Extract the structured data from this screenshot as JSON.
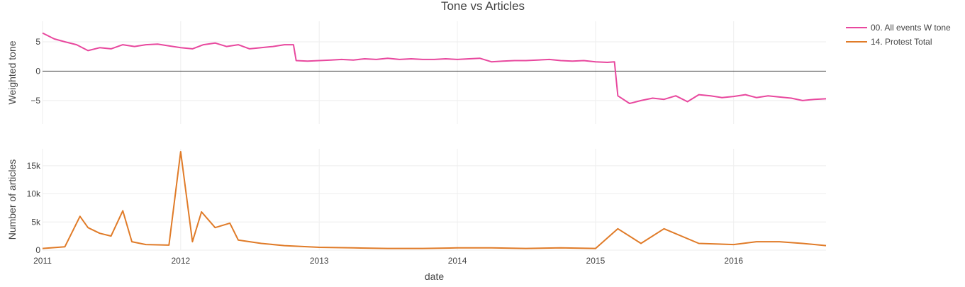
{
  "title": "Tone vs Articles",
  "legend": {
    "placement": "top-right",
    "items": [
      {
        "label": "00. All events W tone",
        "color": "#e8489e"
      },
      {
        "label": "14. Protest  Total",
        "color": "#e07b28"
      }
    ]
  },
  "chart_data": [
    {
      "type": "line",
      "title": "Tone vs Articles",
      "xlabel": "",
      "ylabel": "Weighted tone",
      "xlim": [
        "2011-01-01",
        "2016-09-01"
      ],
      "ylim": [
        -9,
        8.5
      ],
      "yticks": [
        5,
        0,
        -5
      ],
      "ytick_labels": [
        "5",
        "0",
        "−5"
      ],
      "zero_line": true,
      "grid": true,
      "series": [
        {
          "name": "00. All events W tone",
          "color": "#e8489e",
          "x": [
            "2011-01-01",
            "2011-02-01",
            "2011-03-01",
            "2011-04-01",
            "2011-05-01",
            "2011-06-01",
            "2011-07-01",
            "2011-08-01",
            "2011-09-01",
            "2011-10-01",
            "2011-11-01",
            "2011-12-01",
            "2012-01-01",
            "2012-02-01",
            "2012-03-01",
            "2012-04-01",
            "2012-05-01",
            "2012-06-01",
            "2012-07-01",
            "2012-08-01",
            "2012-09-01",
            "2012-10-01",
            "2012-10-25",
            "2012-11-01",
            "2012-12-01",
            "2013-01-01",
            "2013-02-01",
            "2013-03-01",
            "2013-04-01",
            "2013-05-01",
            "2013-06-01",
            "2013-07-01",
            "2013-08-01",
            "2013-09-01",
            "2013-10-01",
            "2013-11-01",
            "2013-12-01",
            "2014-01-01",
            "2014-02-01",
            "2014-03-01",
            "2014-04-01",
            "2014-05-01",
            "2014-06-01",
            "2014-07-01",
            "2014-08-01",
            "2014-09-01",
            "2014-10-01",
            "2014-11-01",
            "2014-12-01",
            "2015-01-01",
            "2015-02-01",
            "2015-02-20",
            "2015-03-01",
            "2015-04-01",
            "2015-05-01",
            "2015-06-01",
            "2015-07-01",
            "2015-08-01",
            "2015-09-01",
            "2015-10-01",
            "2015-11-01",
            "2015-12-01",
            "2016-01-01",
            "2016-02-01",
            "2016-03-01",
            "2016-04-01",
            "2016-05-01",
            "2016-06-01",
            "2016-07-01",
            "2016-08-01",
            "2016-09-01"
          ],
          "values": [
            6.5,
            5.5,
            5.0,
            4.5,
            3.5,
            4.0,
            3.8,
            4.5,
            4.2,
            4.5,
            4.6,
            4.3,
            4.0,
            3.8,
            4.5,
            4.8,
            4.2,
            4.5,
            3.8,
            4.0,
            4.2,
            4.5,
            4.5,
            1.8,
            1.7,
            1.8,
            1.9,
            2.0,
            1.9,
            2.1,
            2.0,
            2.2,
            2.0,
            2.1,
            2.0,
            2.0,
            2.1,
            2.0,
            2.1,
            2.2,
            1.6,
            1.7,
            1.8,
            1.8,
            1.9,
            2.0,
            1.8,
            1.7,
            1.8,
            1.6,
            1.5,
            1.6,
            -4.2,
            -5.5,
            -5.0,
            -4.6,
            -4.8,
            -4.2,
            -5.2,
            -4.0,
            -4.2,
            -4.5,
            -4.3,
            -4.0,
            -4.5,
            -4.2,
            -4.4,
            -4.6,
            -5.0,
            -4.8,
            -4.7
          ]
        }
      ]
    },
    {
      "type": "line",
      "title": "",
      "xlabel": "date",
      "ylabel": "Number of articles",
      "xlim": [
        "2011-01-01",
        "2016-09-01"
      ],
      "ylim": [
        0,
        18000
      ],
      "yticks": [
        0,
        5000,
        10000,
        15000
      ],
      "ytick_labels": [
        "0",
        "5k",
        "10k",
        "15k"
      ],
      "xticks": [
        "2011-01-01",
        "2012-01-01",
        "2013-01-01",
        "2014-01-01",
        "2015-01-01",
        "2016-01-01"
      ],
      "xtick_labels": [
        "2011",
        "2012",
        "2013",
        "2014",
        "2015",
        "2016"
      ],
      "grid": true,
      "series": [
        {
          "name": "14. Protest  Total",
          "color": "#e07b28",
          "x": [
            "2011-01-01",
            "2011-03-01",
            "2011-04-10",
            "2011-05-01",
            "2011-06-01",
            "2011-07-01",
            "2011-08-01",
            "2011-08-25",
            "2011-10-01",
            "2011-12-01",
            "2012-01-01",
            "2012-02-01",
            "2012-02-25",
            "2012-04-01",
            "2012-05-10",
            "2012-06-01",
            "2012-08-01",
            "2012-10-01",
            "2013-01-01",
            "2013-04-01",
            "2013-07-01",
            "2013-10-01",
            "2014-01-01",
            "2014-04-01",
            "2014-07-01",
            "2014-10-01",
            "2015-01-01",
            "2015-03-01",
            "2015-05-01",
            "2015-07-01",
            "2015-10-01",
            "2016-01-01",
            "2016-03-01",
            "2016-05-01",
            "2016-07-01",
            "2016-09-01"
          ],
          "values": [
            300,
            600,
            6000,
            4000,
            3000,
            2500,
            7000,
            1500,
            1000,
            900,
            17500,
            1500,
            6800,
            4000,
            4800,
            1800,
            1200,
            800,
            500,
            400,
            300,
            300,
            400,
            400,
            300,
            400,
            300,
            3800,
            1200,
            3800,
            1200,
            1000,
            1500,
            1500,
            1200,
            800
          ]
        }
      ]
    }
  ]
}
